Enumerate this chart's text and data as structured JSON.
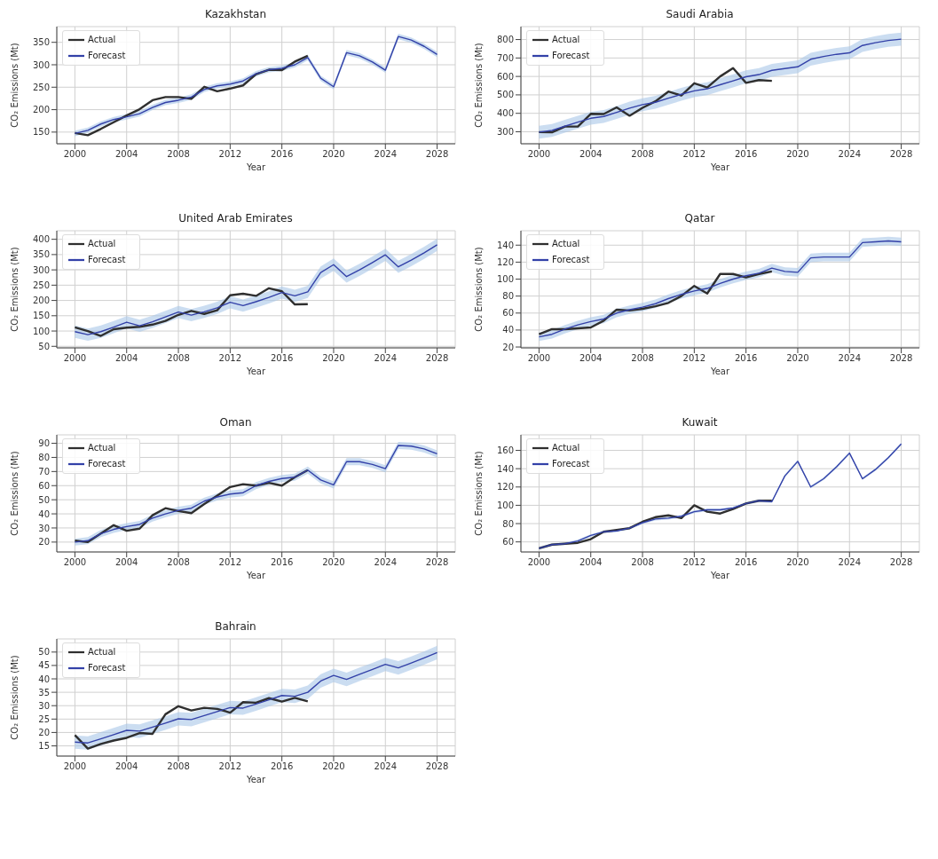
{
  "chart_data": [
    {
      "type": "line",
      "title": "Kazakhstan",
      "xlabel": "Year",
      "ylabel": "CO₂ Emissions (Mt)",
      "grid": true,
      "legend": "top left",
      "xlim": [
        1998.6,
        2029.4
      ],
      "xticks": [
        2000,
        2004,
        2008,
        2012,
        2016,
        2020,
        2024,
        2028
      ],
      "ylim": [
        124,
        385
      ],
      "yticks": [
        150,
        200,
        250,
        300,
        350
      ],
      "x": [
        2000,
        2001,
        2002,
        2003,
        2004,
        2005,
        2006,
        2007,
        2008,
        2009,
        2010,
        2011,
        2012,
        2013,
        2014,
        2015,
        2016,
        2017,
        2018,
        2019,
        2020,
        2021,
        2022,
        2023,
        2024,
        2025,
        2026,
        2027,
        2028
      ],
      "series": [
        {
          "name": "Actual",
          "color": "#2f2f2f",
          "values": [
            148,
            143,
            157,
            172,
            187,
            201,
            221,
            228,
            228,
            224,
            251,
            241,
            247,
            254,
            279,
            289,
            288,
            307,
            320,
            null,
            null,
            null,
            null,
            null,
            null,
            null,
            null,
            null,
            null
          ]
        },
        {
          "name": "Forecast",
          "color": "#3341a8",
          "values": [
            147,
            154,
            168,
            178,
            184,
            191,
            205,
            216,
            221,
            228,
            245,
            253,
            257,
            264,
            280,
            289,
            292,
            300,
            316,
            270,
            251,
            327,
            320,
            306,
            288,
            363,
            355,
            341,
            323
          ],
          "lower": [
            141,
            148,
            162,
            172,
            178,
            185,
            199,
            210,
            215,
            222,
            239,
            247,
            251,
            258,
            274,
            283,
            286,
            294,
            310,
            264,
            245,
            321,
            314,
            300,
            282,
            357,
            349,
            335,
            317
          ],
          "upper": [
            153,
            160,
            174,
            184,
            190,
            197,
            211,
            222,
            227,
            234,
            251,
            259,
            263,
            270,
            286,
            295,
            298,
            306,
            322,
            276,
            257,
            333,
            326,
            312,
            294,
            369,
            361,
            347,
            329
          ]
        }
      ]
    },
    {
      "type": "line",
      "title": "Saudi Arabia",
      "xlabel": "Year",
      "ylabel": "CO₂ Emissions (Mt)",
      "grid": true,
      "legend": "top left",
      "xlim": [
        1998.6,
        2029.4
      ],
      "xticks": [
        2000,
        2004,
        2008,
        2012,
        2016,
        2020,
        2024,
        2028
      ],
      "ylim": [
        235,
        870
      ],
      "yticks": [
        300,
        400,
        500,
        600,
        700,
        800
      ],
      "x": [
        2000,
        2001,
        2002,
        2003,
        2004,
        2005,
        2006,
        2007,
        2008,
        2009,
        2010,
        2011,
        2012,
        2013,
        2014,
        2015,
        2016,
        2017,
        2018,
        2019,
        2020,
        2021,
        2022,
        2023,
        2024,
        2025,
        2026,
        2027,
        2028
      ],
      "series": [
        {
          "name": "Actual",
          "color": "#2f2f2f",
          "values": [
            298,
            297,
            328,
            328,
            397,
            396,
            432,
            387,
            430,
            465,
            518,
            497,
            563,
            540,
            600,
            645,
            565,
            580,
            576,
            null,
            null,
            null,
            null,
            null,
            null,
            null,
            null,
            null,
            null
          ]
        },
        {
          "name": "Forecast",
          "color": "#3341a8",
          "values": [
            298,
            307,
            330,
            352,
            373,
            383,
            405,
            428,
            447,
            460,
            482,
            503,
            522,
            533,
            555,
            576,
            598,
            610,
            633,
            643,
            652,
            693,
            708,
            720,
            728,
            768,
            783,
            795,
            802
          ],
          "lower": [
            263,
            272,
            295,
            317,
            338,
            348,
            370,
            393,
            412,
            425,
            447,
            468,
            487,
            498,
            520,
            541,
            563,
            575,
            598,
            608,
            617,
            658,
            673,
            685,
            693,
            733,
            748,
            760,
            767
          ],
          "upper": [
            333,
            342,
            365,
            387,
            408,
            418,
            440,
            463,
            482,
            495,
            517,
            538,
            557,
            568,
            590,
            611,
            633,
            645,
            668,
            678,
            687,
            728,
            743,
            755,
            763,
            803,
            818,
            830,
            837
          ]
        }
      ]
    },
    {
      "type": "line",
      "title": "United Arab Emirates",
      "xlabel": "Year",
      "ylabel": "CO₂ Emissions (Mt)",
      "grid": true,
      "legend": "top left",
      "xlim": [
        1998.6,
        2029.4
      ],
      "xticks": [
        2000,
        2004,
        2008,
        2012,
        2016,
        2020,
        2024,
        2028
      ],
      "ylim": [
        45,
        428
      ],
      "yticks": [
        50,
        100,
        150,
        200,
        250,
        300,
        350,
        400
      ],
      "x": [
        2000,
        2001,
        2002,
        2003,
        2004,
        2005,
        2006,
        2007,
        2008,
        2009,
        2010,
        2011,
        2012,
        2013,
        2014,
        2015,
        2016,
        2017,
        2018,
        2019,
        2020,
        2021,
        2022,
        2023,
        2024,
        2025,
        2026,
        2027,
        2028
      ],
      "series": [
        {
          "name": "Actual",
          "color": "#2f2f2f",
          "values": [
            112,
            100,
            84,
            106,
            111,
            114,
            121,
            133,
            153,
            166,
            156,
            168,
            217,
            222,
            215,
            240,
            230,
            187,
            188,
            null,
            null,
            null,
            null,
            null,
            null,
            null,
            null,
            null,
            null
          ]
        },
        {
          "name": "Forecast",
          "color": "#3341a8",
          "values": [
            98,
            88,
            98,
            113,
            129,
            117,
            130,
            146,
            162,
            152,
            163,
            176,
            194,
            183,
            196,
            210,
            226,
            215,
            228,
            291,
            317,
            278,
            300,
            324,
            349,
            310,
            332,
            356,
            382
          ],
          "lower": [
            78,
            68,
            78,
            93,
            109,
            97,
            110,
            126,
            142,
            132,
            143,
            156,
            174,
            163,
            176,
            190,
            206,
            195,
            208,
            271,
            297,
            258,
            280,
            304,
            329,
            290,
            312,
            336,
            362
          ],
          "upper": [
            118,
            108,
            118,
            133,
            149,
            137,
            150,
            166,
            182,
            172,
            183,
            196,
            214,
            203,
            216,
            230,
            246,
            235,
            248,
            311,
            337,
            298,
            320,
            344,
            369,
            330,
            352,
            376,
            402
          ]
        }
      ]
    },
    {
      "type": "line",
      "title": "Qatar",
      "xlabel": "Year",
      "ylabel": "CO₂ Emissions (Mt)",
      "grid": true,
      "legend": "top left",
      "xlim": [
        1998.6,
        2029.4
      ],
      "xticks": [
        2000,
        2004,
        2008,
        2012,
        2016,
        2020,
        2024,
        2028
      ],
      "ylim": [
        19,
        157
      ],
      "yticks": [
        20,
        40,
        60,
        80,
        100,
        120,
        140
      ],
      "x": [
        2000,
        2001,
        2002,
        2003,
        2004,
        2005,
        2006,
        2007,
        2008,
        2009,
        2010,
        2011,
        2012,
        2013,
        2014,
        2015,
        2016,
        2017,
        2018,
        2019,
        2020,
        2021,
        2022,
        2023,
        2024,
        2025,
        2026,
        2027,
        2028
      ],
      "series": [
        {
          "name": "Actual",
          "color": "#2f2f2f",
          "values": [
            35,
            41,
            41,
            42,
            43,
            51,
            64,
            63,
            65,
            68,
            72,
            80,
            92,
            83,
            106,
            106,
            102,
            106,
            109,
            null,
            null,
            null,
            null,
            null,
            null,
            null,
            null,
            null,
            null
          ]
        },
        {
          "name": "Forecast",
          "color": "#3341a8",
          "values": [
            32,
            35,
            41,
            46,
            50,
            53,
            60,
            64,
            67,
            71,
            77,
            82,
            86,
            89,
            95,
            100,
            104,
            107,
            113,
            109,
            108,
            125,
            126,
            126,
            126,
            143,
            144,
            145,
            144
          ],
          "lower": [
            27,
            30,
            36,
            41,
            45,
            48,
            55,
            59,
            62,
            66,
            72,
            77,
            81,
            84,
            90,
            95,
            99,
            102,
            108,
            104,
            103,
            120,
            121,
            121,
            121,
            138,
            139,
            140,
            139
          ],
          "upper": [
            37,
            40,
            46,
            51,
            55,
            58,
            65,
            69,
            72,
            76,
            82,
            87,
            91,
            94,
            100,
            105,
            109,
            112,
            118,
            114,
            113,
            130,
            131,
            131,
            131,
            148,
            149,
            150,
            149
          ]
        }
      ]
    },
    {
      "type": "line",
      "title": "Oman",
      "xlabel": "Year",
      "ylabel": "CO₂ Emissions (Mt)",
      "grid": true,
      "legend": "top left",
      "xlim": [
        1998.6,
        2029.4
      ],
      "xticks": [
        2000,
        2004,
        2008,
        2012,
        2016,
        2020,
        2024,
        2028
      ],
      "ylim": [
        13,
        96
      ],
      "yticks": [
        20,
        30,
        40,
        50,
        60,
        70,
        80,
        90
      ],
      "x": [
        2000,
        2001,
        2002,
        2003,
        2004,
        2005,
        2006,
        2007,
        2008,
        2009,
        2010,
        2011,
        2012,
        2013,
        2014,
        2015,
        2016,
        2017,
        2018,
        2019,
        2020,
        2021,
        2022,
        2023,
        2024,
        2025,
        2026,
        2027,
        2028
      ],
      "series": [
        {
          "name": "Actual",
          "color": "#2f2f2f",
          "values": [
            21,
            20,
            26,
            32,
            28,
            29.5,
            39,
            44,
            42,
            40.5,
            47,
            53,
            59,
            61,
            60,
            62,
            60,
            66,
            71,
            null,
            null,
            null,
            null,
            null,
            null,
            null,
            null,
            null,
            null
          ]
        },
        {
          "name": "Forecast",
          "color": "#3341a8",
          "values": [
            20,
            21,
            26,
            29,
            31,
            32.5,
            37,
            40,
            42.5,
            44,
            49,
            52,
            54,
            55,
            60,
            63,
            65,
            66,
            71,
            64,
            60.5,
            77,
            77,
            75,
            72,
            88.5,
            88,
            86,
            82.5
          ],
          "lower": [
            17.5,
            18.5,
            23.5,
            26.5,
            28.5,
            30,
            34.5,
            37.5,
            40,
            41.5,
            46.5,
            49.5,
            51.5,
            52.5,
            57.5,
            60.5,
            62.5,
            63.5,
            68.5,
            61.5,
            58,
            74.5,
            74.5,
            72.5,
            69.5,
            86,
            85.5,
            83.5,
            80
          ],
          "upper": [
            22.5,
            23.5,
            28.5,
            31.5,
            33.5,
            35,
            39.5,
            42.5,
            45,
            46.5,
            51.5,
            54.5,
            56.5,
            57.5,
            62.5,
            65.5,
            67.5,
            68.5,
            73.5,
            66.5,
            63,
            79.5,
            79.5,
            77.5,
            74.5,
            91,
            90.5,
            88.5,
            85
          ]
        }
      ]
    },
    {
      "type": "line",
      "title": "Kuwait",
      "xlabel": "Year",
      "ylabel": "CO₂ Emissions (Mt)",
      "grid": true,
      "legend": "top left",
      "xlim": [
        1998.6,
        2029.4
      ],
      "xticks": [
        2000,
        2004,
        2008,
        2012,
        2016,
        2020,
        2024,
        2028
      ],
      "ylim": [
        49,
        177
      ],
      "yticks": [
        60,
        80,
        100,
        120,
        140,
        160
      ],
      "x": [
        2000,
        2001,
        2002,
        2003,
        2004,
        2005,
        2006,
        2007,
        2008,
        2009,
        2010,
        2011,
        2012,
        2013,
        2014,
        2015,
        2016,
        2017,
        2018,
        2019,
        2020,
        2021,
        2022,
        2023,
        2024,
        2025,
        2026,
        2027,
        2028
      ],
      "series": [
        {
          "name": "Actual",
          "color": "#2f2f2f",
          "values": [
            53,
            57,
            58,
            59,
            63,
            71,
            73,
            75,
            82,
            87,
            89,
            86,
            100,
            93,
            91,
            96,
            102,
            105,
            105,
            null,
            null,
            null,
            null,
            null,
            null,
            null,
            null,
            null,
            null
          ]
        },
        {
          "name": "Forecast",
          "color": "#3341a8",
          "values": [
            53,
            57,
            58,
            61,
            67,
            71,
            72,
            75,
            81,
            85,
            86,
            88,
            93,
            95,
            95,
            97,
            102,
            105,
            104,
            132,
            148,
            120,
            129,
            142,
            157,
            129,
            139,
            152,
            167
          ],
          "lower": [
            51.5,
            55.5,
            56.5,
            59.5,
            65.5,
            69.5,
            70.5,
            73.5,
            79.5,
            83.5,
            84.5,
            86.5,
            91.5,
            93.5,
            93.5,
            95.5,
            100.5,
            103.5,
            102.5,
            130.5,
            146.5,
            118.5,
            127.5,
            140.5,
            155.5,
            127.5,
            137.5,
            150.5,
            165.5
          ],
          "upper": [
            54.5,
            58.5,
            59.5,
            62.5,
            68.5,
            72.5,
            73.5,
            76.5,
            82.5,
            86.5,
            87.5,
            89.5,
            94.5,
            96.5,
            96.5,
            98.5,
            103.5,
            106.5,
            105.5,
            133.5,
            149.5,
            121.5,
            130.5,
            143.5,
            158.5,
            130.5,
            140.5,
            153.5,
            168.5
          ]
        }
      ]
    },
    {
      "type": "line",
      "title": "Bahrain",
      "xlabel": "Year",
      "ylabel": "CO₂ Emissions (Mt)",
      "grid": true,
      "legend": "top left",
      "xlim": [
        1998.6,
        2029.4
      ],
      "xticks": [
        2000,
        2004,
        2008,
        2012,
        2016,
        2020,
        2024,
        2028
      ],
      "ylim": [
        11.2,
        54.9
      ],
      "yticks": [
        15,
        20,
        25,
        30,
        35,
        40,
        45,
        50
      ],
      "x": [
        2000,
        2001,
        2002,
        2003,
        2004,
        2005,
        2006,
        2007,
        2008,
        2009,
        2010,
        2011,
        2012,
        2013,
        2014,
        2015,
        2016,
        2017,
        2018,
        2019,
        2020,
        2021,
        2022,
        2023,
        2024,
        2025,
        2026,
        2027,
        2028
      ],
      "series": [
        {
          "name": "Actual",
          "color": "#2f2f2f",
          "values": [
            19,
            14,
            15.7,
            17,
            18,
            19.8,
            19.5,
            26.8,
            29.8,
            28.2,
            29.2,
            28.8,
            27.4,
            31.3,
            31.1,
            32.8,
            31.5,
            32.9,
            31.6,
            null,
            null,
            null,
            null,
            null,
            null,
            null,
            null,
            null,
            null
          ]
        },
        {
          "name": "Forecast",
          "color": "#3341a8",
          "values": [
            16.4,
            16.1,
            17.6,
            19.2,
            20.8,
            20.5,
            22,
            23.5,
            25.1,
            24.8,
            26.3,
            27.8,
            29.3,
            29.1,
            30.6,
            32.2,
            33.8,
            33.5,
            35,
            39.2,
            41.3,
            39.8,
            41.7,
            43.5,
            45.4,
            44.1,
            45.9,
            47.8,
            49.8
          ],
          "lower": [
            13.9,
            13.6,
            15.1,
            16.7,
            18.3,
            18,
            19.5,
            21,
            22.6,
            22.3,
            23.8,
            25.3,
            26.8,
            26.6,
            28.1,
            29.7,
            31.3,
            31,
            32.5,
            36.7,
            38.8,
            37.3,
            39.2,
            41,
            42.9,
            41.6,
            43.4,
            45.3,
            47.3
          ],
          "upper": [
            18.9,
            18.6,
            20.1,
            21.7,
            23.3,
            23,
            24.5,
            26,
            27.6,
            27.3,
            28.8,
            30.3,
            31.8,
            31.6,
            33.1,
            34.7,
            36.3,
            36,
            37.5,
            41.7,
            43.8,
            42.3,
            44.2,
            46,
            47.9,
            46.6,
            48.4,
            50.3,
            52.3
          ]
        }
      ]
    }
  ]
}
